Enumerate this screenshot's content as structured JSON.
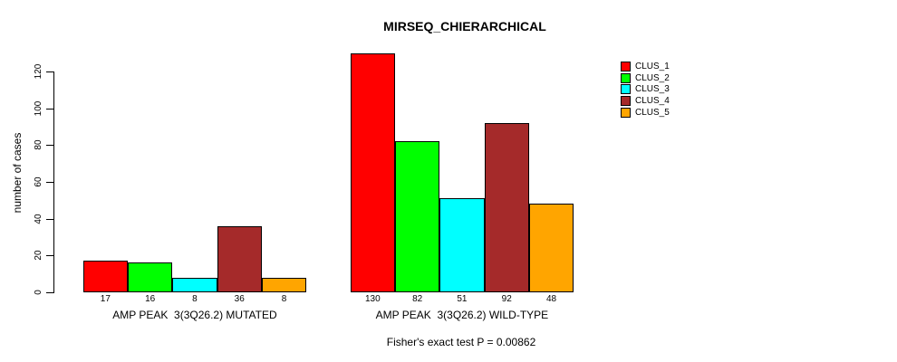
{
  "title": "MIRSEQ_CHIERARCHICAL",
  "chart_data": {
    "type": "bar",
    "title": "MIRSEQ_CHIERARCHICAL",
    "ylabel": "number of cases",
    "xlabel": "",
    "ylim": [
      0,
      120
    ],
    "yticks": [
      "0",
      "20",
      "40",
      "60",
      "80",
      "100",
      "120"
    ],
    "grid": false,
    "legend_position": "top-right",
    "categories": [
      "AMP PEAK  3(3Q26.2) MUTATED",
      "AMP PEAK  3(3Q26.2) WILD-TYPE"
    ],
    "series": [
      {
        "name": "CLUS_1",
        "color": "#FF0000",
        "values": [
          17,
          130
        ]
      },
      {
        "name": "CLUS_2",
        "color": "#00FF00",
        "values": [
          16,
          82
        ]
      },
      {
        "name": "CLUS_3",
        "color": "#00FFFF",
        "values": [
          8,
          51
        ]
      },
      {
        "name": "CLUS_4",
        "color": "#A52A2A",
        "values": [
          36,
          92
        ]
      },
      {
        "name": "CLUS_5",
        "color": "#FFA500",
        "values": [
          8,
          48
        ]
      }
    ],
    "annotation": "Fisher's exact test P = 0.00862"
  },
  "footer": {
    "note": "Fisher's exact test P = 0.00862"
  }
}
